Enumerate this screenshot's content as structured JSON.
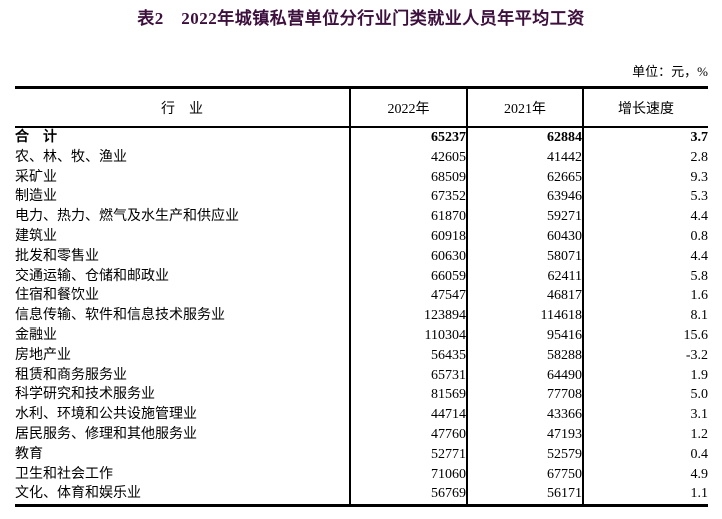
{
  "page": {
    "title": "表2　2022年城镇私营单位分行业门类就业人员年平均工资",
    "units_note": "单位：元，%",
    "title_color": "#3d0f3d",
    "border_color": "#000000",
    "background_color": "#ffffff"
  },
  "table": {
    "columns": [
      "行　业",
      "2022年",
      "2021年",
      "增长速度"
    ],
    "rows": [
      {
        "name": "合　计",
        "y2022": "65237",
        "y2021": "62884",
        "growth": "3.7",
        "bold": true
      },
      {
        "name": "农、林、牧、渔业",
        "y2022": "42605",
        "y2021": "41442",
        "growth": "2.8",
        "bold": false
      },
      {
        "name": "采矿业",
        "y2022": "68509",
        "y2021": "62665",
        "growth": "9.3",
        "bold": false
      },
      {
        "name": "制造业",
        "y2022": "67352",
        "y2021": "63946",
        "growth": "5.3",
        "bold": false
      },
      {
        "name": "电力、热力、燃气及水生产和供应业",
        "y2022": "61870",
        "y2021": "59271",
        "growth": "4.4",
        "bold": false
      },
      {
        "name": "建筑业",
        "y2022": "60918",
        "y2021": "60430",
        "growth": "0.8",
        "bold": false
      },
      {
        "name": "批发和零售业",
        "y2022": "60630",
        "y2021": "58071",
        "growth": "4.4",
        "bold": false
      },
      {
        "name": "交通运输、仓储和邮政业",
        "y2022": "66059",
        "y2021": "62411",
        "growth": "5.8",
        "bold": false
      },
      {
        "name": "住宿和餐饮业",
        "y2022": "47547",
        "y2021": "46817",
        "growth": "1.6",
        "bold": false
      },
      {
        "name": "信息传输、软件和信息技术服务业",
        "y2022": "123894",
        "y2021": "114618",
        "growth": "8.1",
        "bold": false
      },
      {
        "name": "金融业",
        "y2022": "110304",
        "y2021": "95416",
        "growth": "15.6",
        "bold": false
      },
      {
        "name": "房地产业",
        "y2022": "56435",
        "y2021": "58288",
        "growth": "-3.2",
        "bold": false
      },
      {
        "name": "租赁和商务服务业",
        "y2022": "65731",
        "y2021": "64490",
        "growth": "1.9",
        "bold": false
      },
      {
        "name": "科学研究和技术服务业",
        "y2022": "81569",
        "y2021": "77708",
        "growth": "5.0",
        "bold": false
      },
      {
        "name": "水利、环境和公共设施管理业",
        "y2022": "44714",
        "y2021": "43366",
        "growth": "3.1",
        "bold": false
      },
      {
        "name": "居民服务、修理和其他服务业",
        "y2022": "47760",
        "y2021": "47193",
        "growth": "1.2",
        "bold": false
      },
      {
        "name": "教育",
        "y2022": "52771",
        "y2021": "52579",
        "growth": "0.4",
        "bold": false
      },
      {
        "name": "卫生和社会工作",
        "y2022": "71060",
        "y2021": "67750",
        "growth": "4.9",
        "bold": false
      },
      {
        "name": "文化、体育和娱乐业",
        "y2022": "56769",
        "y2021": "56171",
        "growth": "1.1",
        "bold": false
      }
    ]
  }
}
